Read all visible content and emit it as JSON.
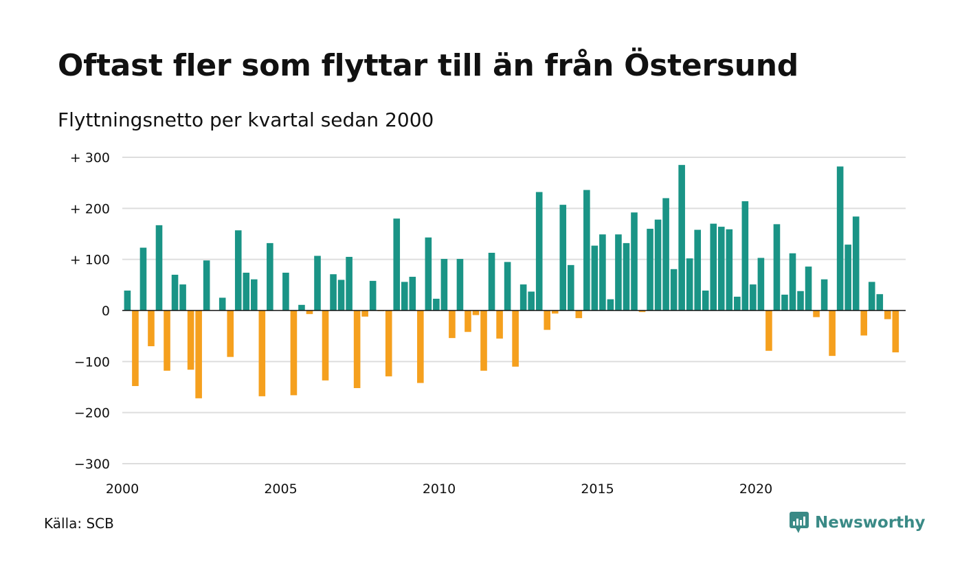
{
  "title": "Oftast fler som flyttar till än från Östersund",
  "subtitle": "Flyttningsnetto per kvartal sedan 2000",
  "source": "Källa: SCB",
  "brand": {
    "name": "Newsworthy",
    "icon": "newsworthy-logo-icon"
  },
  "colors": {
    "positive": "#1a9486",
    "negative": "#f5a01e",
    "grid": "#dddddd",
    "axis": "#111111"
  },
  "chart_data": {
    "type": "bar",
    "x_start": 2000,
    "period": "quarter",
    "xlim": [
      2000,
      2024.75
    ],
    "ylim": [
      -300,
      300
    ],
    "y_ticks": [
      300,
      200,
      100,
      0,
      -100,
      -200,
      -300
    ],
    "y_tick_labels": [
      "+ 300",
      "+ 200",
      "+ 100",
      "0",
      "−100",
      "−200",
      "−300"
    ],
    "x_ticks": [
      2000,
      2005,
      2010,
      2015,
      2020
    ],
    "x_tick_labels": [
      "2000",
      "2005",
      "2010",
      "2015",
      "2020"
    ],
    "grid": true,
    "values": [
      39,
      -148,
      123,
      -70,
      167,
      -118,
      70,
      51,
      -116,
      -172,
      98,
      0,
      25,
      -91,
      157,
      74,
      61,
      -168,
      132,
      0,
      74,
      -166,
      11,
      -7,
      107,
      -137,
      71,
      60,
      105,
      -152,
      -12,
      58,
      -1,
      -129,
      180,
      56,
      66,
      -142,
      143,
      23,
      101,
      -54,
      101,
      -42,
      -9,
      -118,
      113,
      -55,
      95,
      -110,
      51,
      37,
      232,
      -38,
      -6,
      207,
      89,
      -15,
      236,
      127,
      149,
      22,
      149,
      132,
      192,
      -3,
      160,
      178,
      220,
      81,
      285,
      102,
      158,
      39,
      170,
      164,
      159,
      27,
      214,
      51,
      103,
      -79,
      169,
      31,
      112,
      38,
      86,
      -13,
      61,
      -89,
      282,
      129,
      184,
      -49,
      56,
      32,
      -17,
      -82
    ]
  }
}
